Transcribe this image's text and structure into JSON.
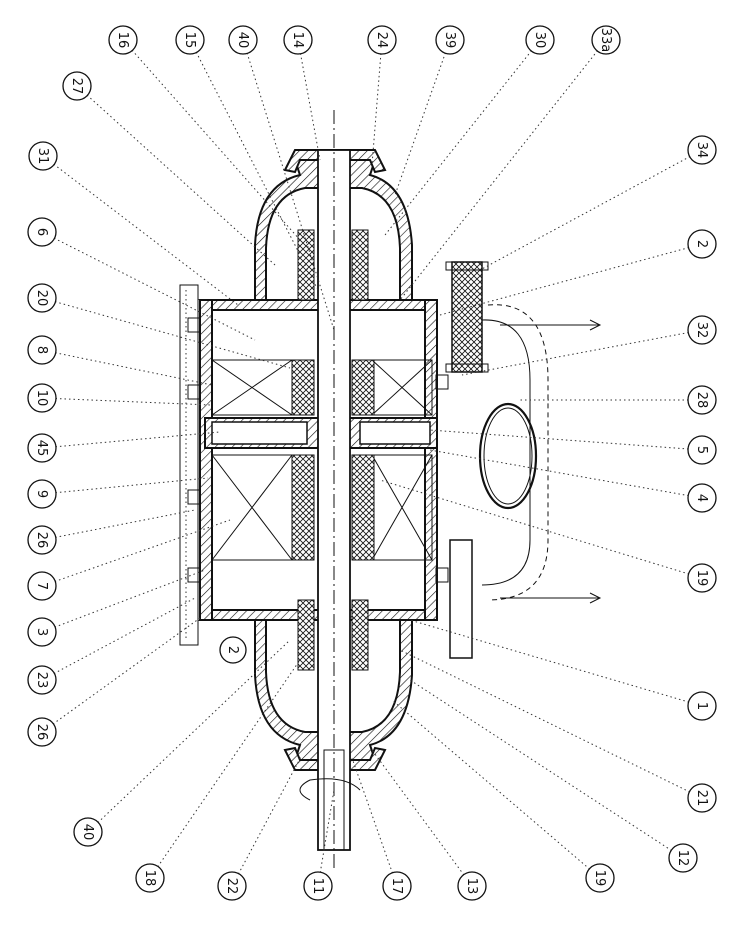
{
  "callouts_top": [
    "16",
    "15",
    "40",
    "14",
    "24",
    "39",
    "30",
    "33a"
  ],
  "callouts_left": [
    "27",
    "31",
    "6",
    "20",
    "8",
    "10",
    "45",
    "9",
    "26",
    "7",
    "3",
    "23",
    "26"
  ],
  "callouts_bottom": [
    "40",
    "18",
    "22",
    "11",
    "17",
    "13",
    "19",
    "12"
  ],
  "callouts_right": [
    "34",
    "2",
    "32",
    "28",
    "5",
    "4",
    "19",
    "1",
    "21"
  ],
  "callout_inner": "2"
}
